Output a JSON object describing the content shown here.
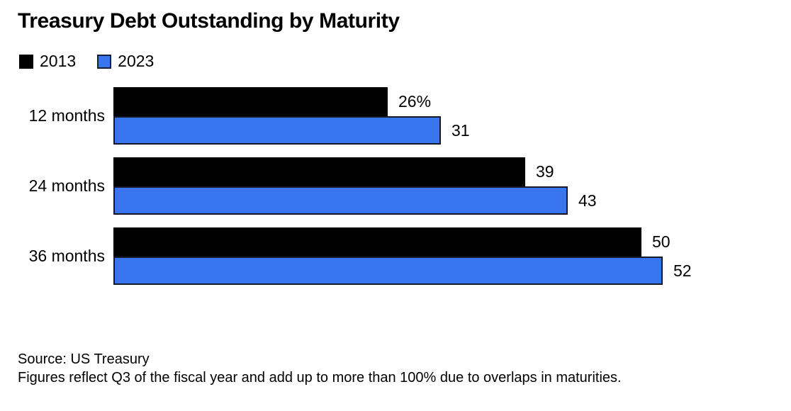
{
  "title": "Treasury Debt Outstanding by Maturity",
  "legend": {
    "items": [
      {
        "label": "2013",
        "color": "#000000"
      },
      {
        "label": "2023",
        "color": "#3A75F0"
      }
    ]
  },
  "chart_data": {
    "type": "bar",
    "orientation": "horizontal",
    "title": "Treasury Debt Outstanding by Maturity",
    "categories": [
      "12 months",
      "24 months",
      "36 months"
    ],
    "series": [
      {
        "name": "2013",
        "color": "#000000",
        "values": [
          26,
          39,
          50
        ],
        "value_labels": [
          "26%",
          "39",
          "50"
        ]
      },
      {
        "name": "2023",
        "color": "#3A75F0",
        "values": [
          31,
          43,
          52
        ],
        "value_labels": [
          "31",
          "43",
          "52"
        ]
      }
    ],
    "unit": "%",
    "xlim": [
      0,
      52
    ],
    "grid": false,
    "legend_position": "top-left",
    "value_labels_shown": true
  },
  "footer": {
    "source": "Source: US Treasury",
    "note": "Figures reflect Q3 of the fiscal year and add up to more than 100% due to overlaps in maturities."
  }
}
